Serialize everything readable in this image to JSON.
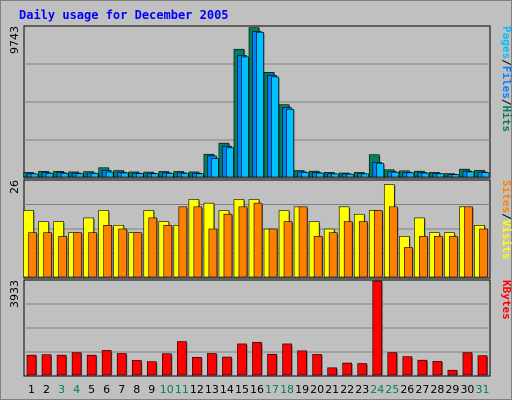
{
  "title": "Daily usage for December 2005",
  "colors": {
    "hits": "#00805c",
    "files": "#0080ff",
    "pages": "#00c0ff",
    "visits": "#ffff00",
    "sites": "#ff8000",
    "kbytes": "#ff0000",
    "title": "#0000ff",
    "weekend": "#00805c",
    "weekday": "#000000"
  },
  "chart_data": [
    {
      "type": "bar",
      "name": "hits-files-pages",
      "ymax_label": "9743",
      "ylim": [
        0,
        9743
      ],
      "legend": [
        {
          "label": "Pages",
          "color": "#00c0ff"
        },
        {
          "label": "/",
          "color": "#000000"
        },
        {
          "label": "Files",
          "color": "#0080ff"
        },
        {
          "label": "/",
          "color": "#000000"
        },
        {
          "label": "Hits",
          "color": "#00805c"
        }
      ],
      "categories": [
        "1",
        "2",
        "3",
        "4",
        "5",
        "6",
        "7",
        "8",
        "9",
        "10",
        "11",
        "12",
        "13",
        "14",
        "15",
        "16",
        "17",
        "18",
        "19",
        "20",
        "21",
        "22",
        "23",
        "24",
        "25",
        "26",
        "27",
        "28",
        "29",
        "30",
        "31"
      ],
      "series": [
        {
          "name": "Hits",
          "values": [
            300,
            370,
            370,
            330,
            350,
            600,
            420,
            330,
            320,
            360,
            360,
            330,
            1480,
            2200,
            8300,
            9700,
            6800,
            4700,
            420,
            380,
            300,
            260,
            300,
            1450,
            470,
            400,
            380,
            300,
            220,
            510,
            430
          ]
        },
        {
          "name": "Files",
          "values": [
            220,
            280,
            280,
            250,
            260,
            430,
            310,
            250,
            240,
            270,
            270,
            250,
            1370,
            2000,
            7900,
            9450,
            6600,
            4500,
            330,
            280,
            220,
            200,
            220,
            950,
            350,
            310,
            290,
            230,
            170,
            380,
            320
          ]
        },
        {
          "name": "Pages",
          "values": [
            200,
            240,
            230,
            220,
            230,
            320,
            260,
            220,
            210,
            230,
            230,
            210,
            1200,
            1900,
            7800,
            9400,
            6500,
            4400,
            290,
            250,
            200,
            180,
            200,
            880,
            310,
            270,
            250,
            210,
            150,
            330,
            280
          ]
        }
      ]
    },
    {
      "type": "bar",
      "name": "visits-sites",
      "ymax_label": "26",
      "ylim": [
        0,
        26
      ],
      "legend": [
        {
          "label": "Sites",
          "color": "#ff8000"
        },
        {
          "label": "/",
          "color": "#000000"
        },
        {
          "label": "Visits",
          "color": "#ffff00"
        }
      ],
      "categories": [
        "1",
        "2",
        "3",
        "4",
        "5",
        "6",
        "7",
        "8",
        "9",
        "10",
        "11",
        "12",
        "13",
        "14",
        "15",
        "16",
        "17",
        "18",
        "19",
        "20",
        "21",
        "22",
        "23",
        "24",
        "25",
        "26",
        "27",
        "28",
        "29",
        "30",
        "31"
      ],
      "series": [
        {
          "name": "Visits",
          "values": [
            18,
            15,
            15,
            12,
            16,
            18,
            14,
            12,
            18,
            15,
            14,
            21,
            20,
            18,
            21,
            21,
            13,
            18,
            19,
            15,
            13,
            19,
            17,
            18,
            25,
            11,
            16,
            12,
            12,
            19,
            14
          ]
        },
        {
          "name": "Sites",
          "values": [
            12,
            12,
            11,
            12,
            12,
            14,
            13,
            12,
            16,
            14,
            19,
            19,
            13,
            17,
            19,
            20,
            13,
            15,
            19,
            11,
            12,
            15,
            15,
            18,
            19,
            8,
            11,
            11,
            11,
            19,
            13
          ]
        }
      ]
    },
    {
      "type": "bar",
      "name": "kbytes",
      "ymax_label": "3933",
      "ylim": [
        0,
        3933
      ],
      "legend": [
        {
          "label": "KBytes",
          "color": "#ff0000"
        }
      ],
      "categories": [
        "1",
        "2",
        "3",
        "4",
        "5",
        "6",
        "7",
        "8",
        "9",
        "10",
        "11",
        "12",
        "13",
        "14",
        "15",
        "16",
        "17",
        "18",
        "19",
        "20",
        "21",
        "22",
        "23",
        "24",
        "25",
        "26",
        "27",
        "28",
        "29",
        "30",
        "31"
      ],
      "series": [
        {
          "name": "KBytes",
          "values": [
            830,
            850,
            830,
            930,
            830,
            1030,
            900,
            610,
            560,
            890,
            1400,
            740,
            900,
            750,
            1300,
            1370,
            870,
            1300,
            1010,
            860,
            300,
            500,
            480,
            3930,
            930,
            770,
            620,
            570,
            200,
            930,
            810
          ]
        }
      ]
    }
  ],
  "x_labels": [
    {
      "label": "1",
      "weekend": false
    },
    {
      "label": "2",
      "weekend": false
    },
    {
      "label": "3",
      "weekend": true
    },
    {
      "label": "4",
      "weekend": true
    },
    {
      "label": "5",
      "weekend": false
    },
    {
      "label": "6",
      "weekend": false
    },
    {
      "label": "7",
      "weekend": false
    },
    {
      "label": "8",
      "weekend": false
    },
    {
      "label": "9",
      "weekend": false
    },
    {
      "label": "10",
      "weekend": true
    },
    {
      "label": "11",
      "weekend": true
    },
    {
      "label": "12",
      "weekend": false
    },
    {
      "label": "13",
      "weekend": false
    },
    {
      "label": "14",
      "weekend": false
    },
    {
      "label": "15",
      "weekend": false
    },
    {
      "label": "16",
      "weekend": false
    },
    {
      "label": "17",
      "weekend": true
    },
    {
      "label": "18",
      "weekend": true
    },
    {
      "label": "19",
      "weekend": false
    },
    {
      "label": "20",
      "weekend": false
    },
    {
      "label": "21",
      "weekend": false
    },
    {
      "label": "22",
      "weekend": false
    },
    {
      "label": "23",
      "weekend": false
    },
    {
      "label": "24",
      "weekend": true
    },
    {
      "label": "25",
      "weekend": true
    },
    {
      "label": "26",
      "weekend": false
    },
    {
      "label": "27",
      "weekend": false
    },
    {
      "label": "28",
      "weekend": false
    },
    {
      "label": "29",
      "weekend": false
    },
    {
      "label": "30",
      "weekend": false
    },
    {
      "label": "31",
      "weekend": true
    }
  ]
}
